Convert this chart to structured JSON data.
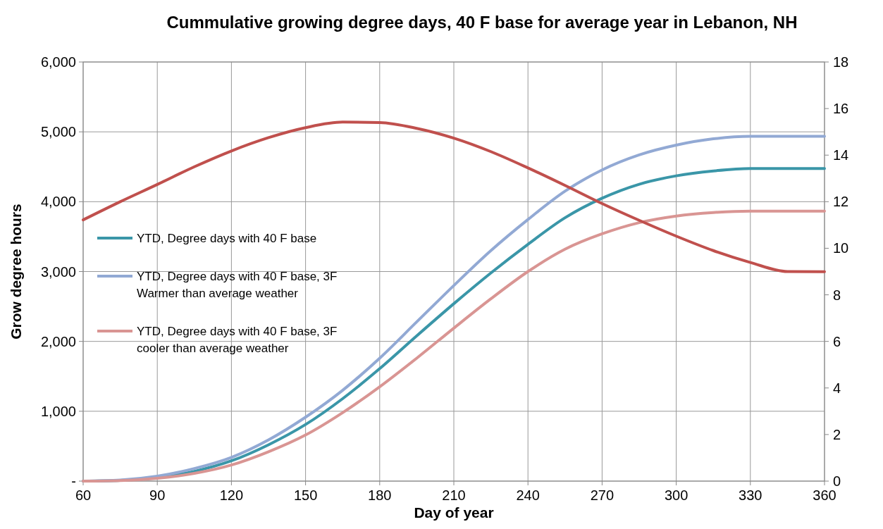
{
  "chart_data": {
    "type": "line",
    "title": "Cummulative growing degree days, 40 F base for average year in Lebanon, NH",
    "xlabel": "Day of year",
    "ylabel": "Grow degree hours",
    "x": [
      60,
      75,
      90,
      105,
      120,
      135,
      150,
      165,
      180,
      195,
      210,
      225,
      240,
      255,
      270,
      285,
      300,
      315,
      330,
      345,
      360
    ],
    "xlim": [
      60,
      360
    ],
    "xticks": [
      60,
      90,
      120,
      150,
      180,
      210,
      240,
      270,
      300,
      330,
      360
    ],
    "ylim": [
      0,
      6000
    ],
    "yticks": [
      {
        "value": 0,
        "label": "-"
      },
      {
        "value": 1000,
        "label": "1,000"
      },
      {
        "value": 2000,
        "label": "2,000"
      },
      {
        "value": 3000,
        "label": "3,000"
      },
      {
        "value": 4000,
        "label": "4,000"
      },
      {
        "value": 5000,
        "label": "5,000"
      },
      {
        "value": 6000,
        "label": "6,000"
      }
    ],
    "y2lim": [
      0,
      18
    ],
    "y2ticks": [
      0,
      2,
      4,
      6,
      8,
      10,
      12,
      14,
      16,
      18
    ],
    "grid": true,
    "legend": "left",
    "marker": "none",
    "line_style": "solid",
    "series": [
      {
        "name": "YTD, Degree days with 40 F base",
        "color": "#3a96a8",
        "values": [
          0,
          10,
          50,
          140,
          290,
          520,
          810,
          1180,
          1610,
          2080,
          2540,
          2980,
          3390,
          3770,
          4050,
          4250,
          4370,
          4440,
          4475,
          4475,
          4475
        ]
      },
      {
        "name": "YTD, Degree days with 40 F base, 3F Warmer than average weather",
        "color": "#92a9d4",
        "values": [
          0,
          15,
          70,
          180,
          340,
          590,
          915,
          1300,
          1760,
          2280,
          2800,
          3300,
          3745,
          4150,
          4455,
          4670,
          4810,
          4900,
          4935,
          4935,
          4935
        ]
      },
      {
        "name": "YTD, Degree days with 40 F base, 3F cooler than average weather",
        "color": "#d99593",
        "values": [
          0,
          8,
          40,
          110,
          230,
          420,
          660,
          980,
          1350,
          1760,
          2190,
          2610,
          3000,
          3320,
          3540,
          3700,
          3795,
          3845,
          3865,
          3865,
          3865
        ]
      },
      {
        "color": "#c0504d",
        "axis": "y2",
        "values": [
          11.22,
          12.0,
          12.74,
          13.5,
          14.18,
          14.75,
          15.18,
          15.42,
          15.4,
          15.15,
          14.73,
          14.15,
          13.45,
          12.7,
          11.92,
          11.2,
          10.52,
          9.9,
          9.39,
          9.0,
          8.99
        ]
      }
    ]
  }
}
